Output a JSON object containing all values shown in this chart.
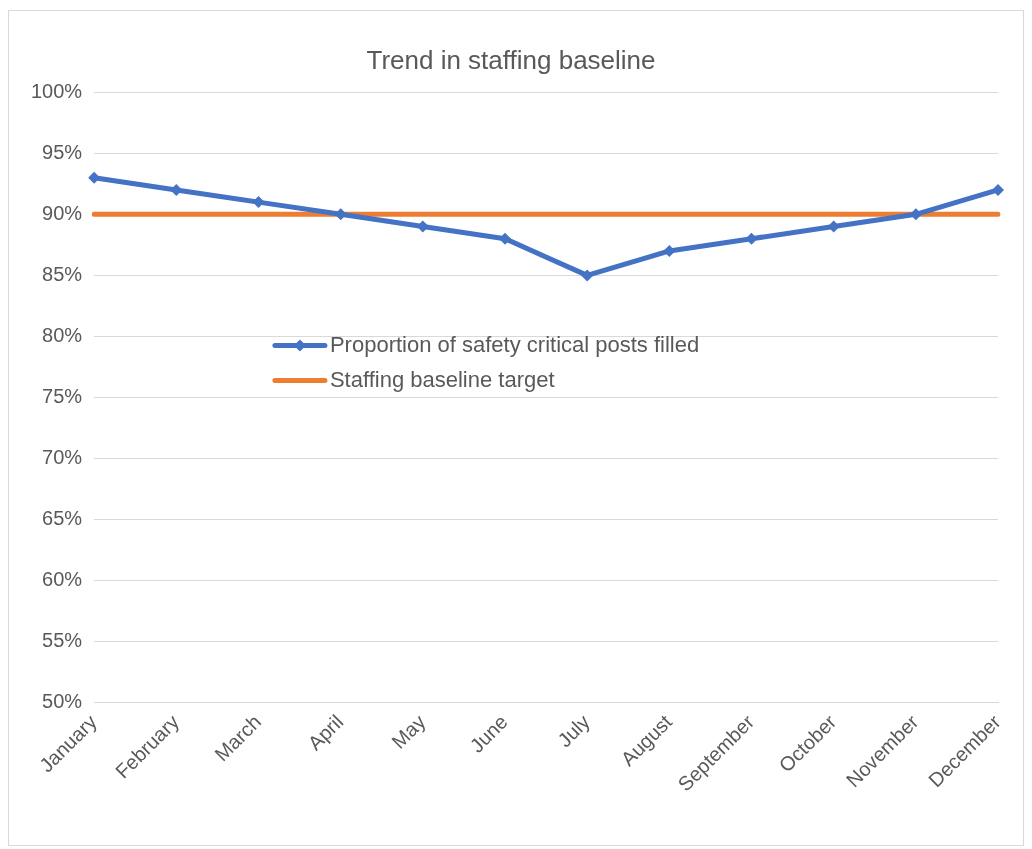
{
  "chart_data": {
    "type": "line",
    "title": "Trend in staffing baseline",
    "categories": [
      "January",
      "February",
      "March",
      "April",
      "May",
      "June",
      "July",
      "August",
      "September",
      "October",
      "November",
      "December"
    ],
    "series": [
      {
        "name": "Proportion of safety critical posts filled",
        "color": "#4472c4",
        "marker": "diamond",
        "values": [
          93,
          92,
          91,
          90,
          89,
          88,
          85,
          87,
          88,
          89,
          90,
          92
        ]
      },
      {
        "name": "Staffing baseline target",
        "color": "#ed7d31",
        "marker": "none",
        "values": [
          90,
          90,
          90,
          90,
          90,
          90,
          90,
          90,
          90,
          90,
          90,
          90
        ]
      }
    ],
    "ylim": [
      50,
      100
    ],
    "yticks": [
      {
        "value": 50,
        "label": "50%"
      },
      {
        "value": 55,
        "label": "55%"
      },
      {
        "value": 60,
        "label": "60%"
      },
      {
        "value": 65,
        "label": "65%"
      },
      {
        "value": 70,
        "label": "70%"
      },
      {
        "value": 75,
        "label": "75%"
      },
      {
        "value": 80,
        "label": "80%"
      },
      {
        "value": 85,
        "label": "85%"
      },
      {
        "value": 90,
        "label": "90%"
      },
      {
        "value": 95,
        "label": "95%"
      },
      {
        "value": 100,
        "label": "100%"
      }
    ],
    "grid": "y",
    "legend": "center",
    "line_style": "solid"
  }
}
